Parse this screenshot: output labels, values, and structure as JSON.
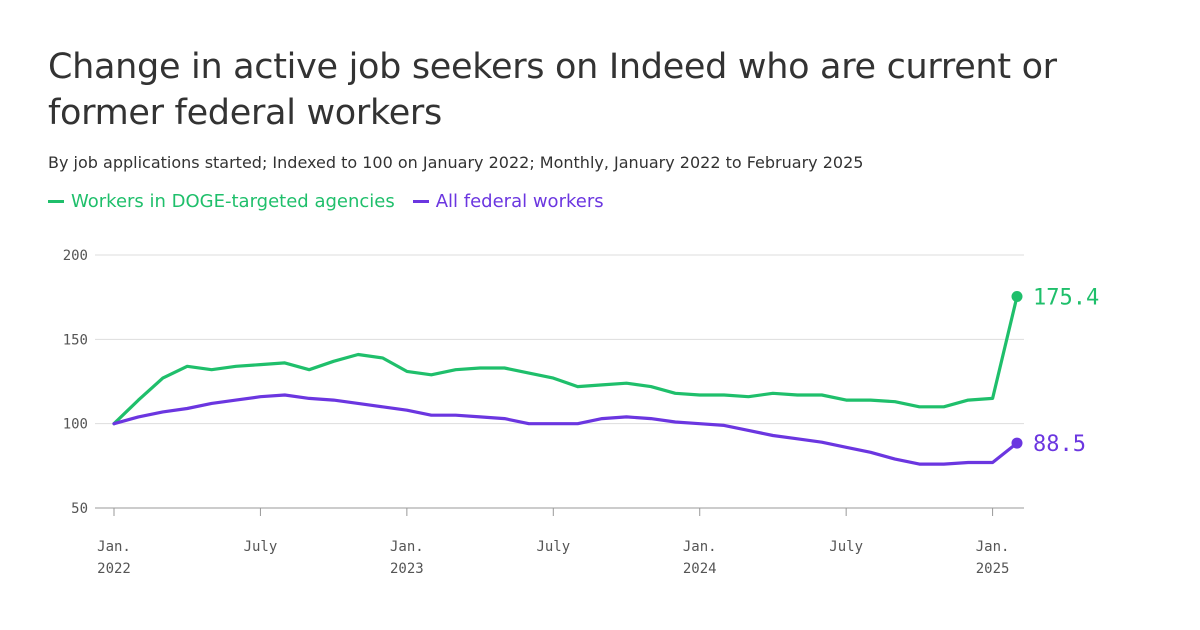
{
  "header": {
    "title": "Change in active job seekers on Indeed who are current or former federal workers",
    "subtitle": "By job applications started; Indexed to 100 on January 2022; Monthly, January 2022 to February 2025"
  },
  "chart_data": {
    "type": "line",
    "title": "Change in active job seekers on Indeed who are current or former federal workers",
    "subtitle": "By job applications started; Indexed to 100 on January 2022; Monthly, January 2022 to February 2025",
    "xlabel": "",
    "ylabel": "",
    "ylim": [
      50,
      200
    ],
    "yticks": [
      200,
      150,
      100,
      50
    ],
    "grid": true,
    "legend": "top-left",
    "x_tick_labels": [
      {
        "month_index": 0,
        "line1": "Jan.",
        "line2": "2022"
      },
      {
        "month_index": 6,
        "line1": "July",
        "line2": ""
      },
      {
        "month_index": 12,
        "line1": "Jan.",
        "line2": "2023"
      },
      {
        "month_index": 18,
        "line1": "July",
        "line2": ""
      },
      {
        "month_index": 24,
        "line1": "Jan.",
        "line2": "2024"
      },
      {
        "month_index": 30,
        "line1": "July",
        "line2": ""
      },
      {
        "month_index": 36,
        "line1": "Jan.",
        "line2": "2025"
      }
    ],
    "x": [
      "2022-01",
      "2022-02",
      "2022-03",
      "2022-04",
      "2022-05",
      "2022-06",
      "2022-07",
      "2022-08",
      "2022-09",
      "2022-10",
      "2022-11",
      "2022-12",
      "2023-01",
      "2023-02",
      "2023-03",
      "2023-04",
      "2023-05",
      "2023-06",
      "2023-07",
      "2023-08",
      "2023-09",
      "2023-10",
      "2023-11",
      "2023-12",
      "2024-01",
      "2024-02",
      "2024-03",
      "2024-04",
      "2024-05",
      "2024-06",
      "2024-07",
      "2024-08",
      "2024-09",
      "2024-10",
      "2024-11",
      "2024-12",
      "2025-01",
      "2025-02"
    ],
    "series": [
      {
        "name": "Workers in DOGE-targeted agencies",
        "color": "#1fbf6b",
        "end_label": "175.4",
        "values": [
          100,
          114,
          127,
          134,
          132,
          134,
          135,
          136,
          132,
          137,
          141,
          139,
          131,
          129,
          132,
          133,
          133,
          130,
          127,
          122,
          123,
          124,
          122,
          118,
          117,
          117,
          116,
          118,
          117,
          117,
          114,
          114,
          113,
          110,
          110,
          114,
          115,
          175.4
        ]
      },
      {
        "name": "All federal workers",
        "color": "#6b36e0",
        "end_label": "88.5",
        "values": [
          100,
          104,
          107,
          109,
          112,
          114,
          116,
          117,
          115,
          114,
          112,
          110,
          108,
          105,
          105,
          104,
          103,
          100,
          100,
          100,
          103,
          104,
          103,
          101,
          100,
          99,
          96,
          93,
          91,
          89,
          86,
          83,
          79,
          76,
          76,
          77,
          77,
          88.5
        ]
      }
    ]
  }
}
